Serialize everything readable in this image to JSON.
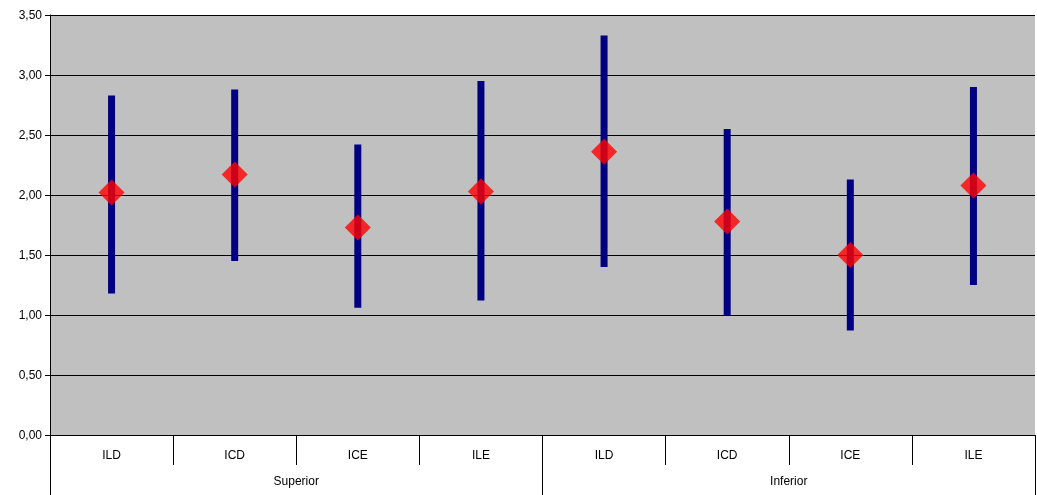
{
  "chart_data": {
    "type": "scatter",
    "categories": [
      "ILD",
      "ICD",
      "ICE",
      "ILE",
      "ILD",
      "ICD",
      "ICE",
      "ILE"
    ],
    "values": [
      2.02,
      2.17,
      1.73,
      2.03,
      2.36,
      1.78,
      1.5,
      2.08
    ],
    "errors": [
      [
        1.18,
        2.83
      ],
      [
        1.45,
        2.88
      ],
      [
        1.06,
        2.42
      ],
      [
        1.12,
        2.95
      ],
      [
        1.4,
        3.33
      ],
      [
        1.0,
        2.55
      ],
      [
        0.87,
        2.13
      ],
      [
        1.25,
        2.9
      ]
    ],
    "color": "#ff0000",
    "marker": "diamond",
    "grid": "y",
    "ylim": [
      0,
      3.5
    ],
    "yticks": [
      {
        "value": 0,
        "label": "0,00"
      },
      {
        "value": 0.5,
        "label": "0,50"
      },
      {
        "value": 1,
        "label": "1,00"
      },
      {
        "value": 1.5,
        "label": "1,50"
      },
      {
        "value": 2,
        "label": "2,00"
      },
      {
        "value": 2.5,
        "label": "2,50"
      },
      {
        "value": 3,
        "label": "3,00"
      },
      {
        "value": 3.5,
        "label": "3,50"
      }
    ],
    "annotations": [
      "Superior",
      "Inferior"
    ]
  }
}
